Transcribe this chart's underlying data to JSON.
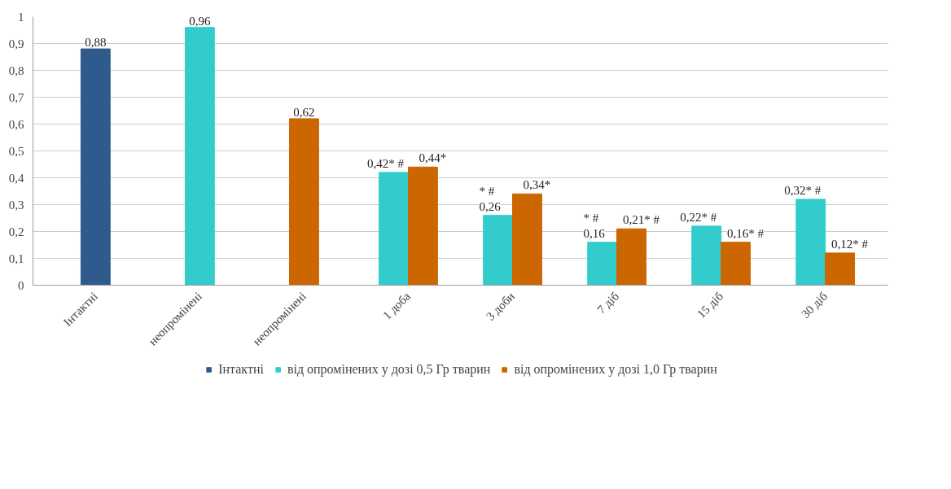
{
  "chart_data": {
    "type": "bar",
    "categories": [
      "Інтактні",
      "неопромінені",
      "неопромінені",
      "1 доба",
      "3 доби",
      "7 діб",
      "15 діб",
      "30 діб"
    ],
    "series": [
      {
        "name": "Інтактні",
        "color": "#2e5a8c",
        "values": [
          0.88,
          null,
          null,
          null,
          null,
          null,
          null,
          null
        ],
        "value_labels": [
          "0,88",
          null,
          null,
          null,
          null,
          null,
          null,
          null
        ]
      },
      {
        "name": "від опромінених у дозі 0,5 Гр тварин",
        "color": "#33cccc",
        "values": [
          null,
          0.96,
          null,
          0.42,
          0.26,
          0.16,
          0.22,
          0.32
        ],
        "value_labels": [
          null,
          "0,96",
          null,
          "0,42* #",
          "* #\n0,26",
          "* #\n0,16",
          "0,22* #",
          "0,32* #"
        ]
      },
      {
        "name": "від опромінених у дозі 1,0 Гр тварин",
        "color": "#cc6600",
        "values": [
          null,
          null,
          0.62,
          0.44,
          0.34,
          0.21,
          0.16,
          0.12
        ],
        "value_labels": [
          null,
          null,
          "0,62",
          "0,44*",
          "0,34*",
          "0,21* #",
          "0,16* #",
          "0,12* #"
        ]
      }
    ],
    "ylim": [
      0,
      1
    ],
    "yticks": [
      0,
      {
        "value": 0.1,
        "label": "0,1"
      },
      {
        "value": 0.2,
        "label": "0,2"
      },
      {
        "value": 0.3,
        "label": "0,3"
      },
      {
        "value": 0.4,
        "label": "0,4"
      },
      {
        "value": 0.5,
        "label": "0,5"
      },
      {
        "value": 0.6,
        "label": "0,6"
      },
      {
        "value": 0.7,
        "label": "0,7"
      },
      {
        "value": 0.8,
        "label": "0,8"
      },
      {
        "value": 0.9,
        "label": "0,9"
      },
      1
    ],
    "grid": "y",
    "legend": "bottom"
  }
}
